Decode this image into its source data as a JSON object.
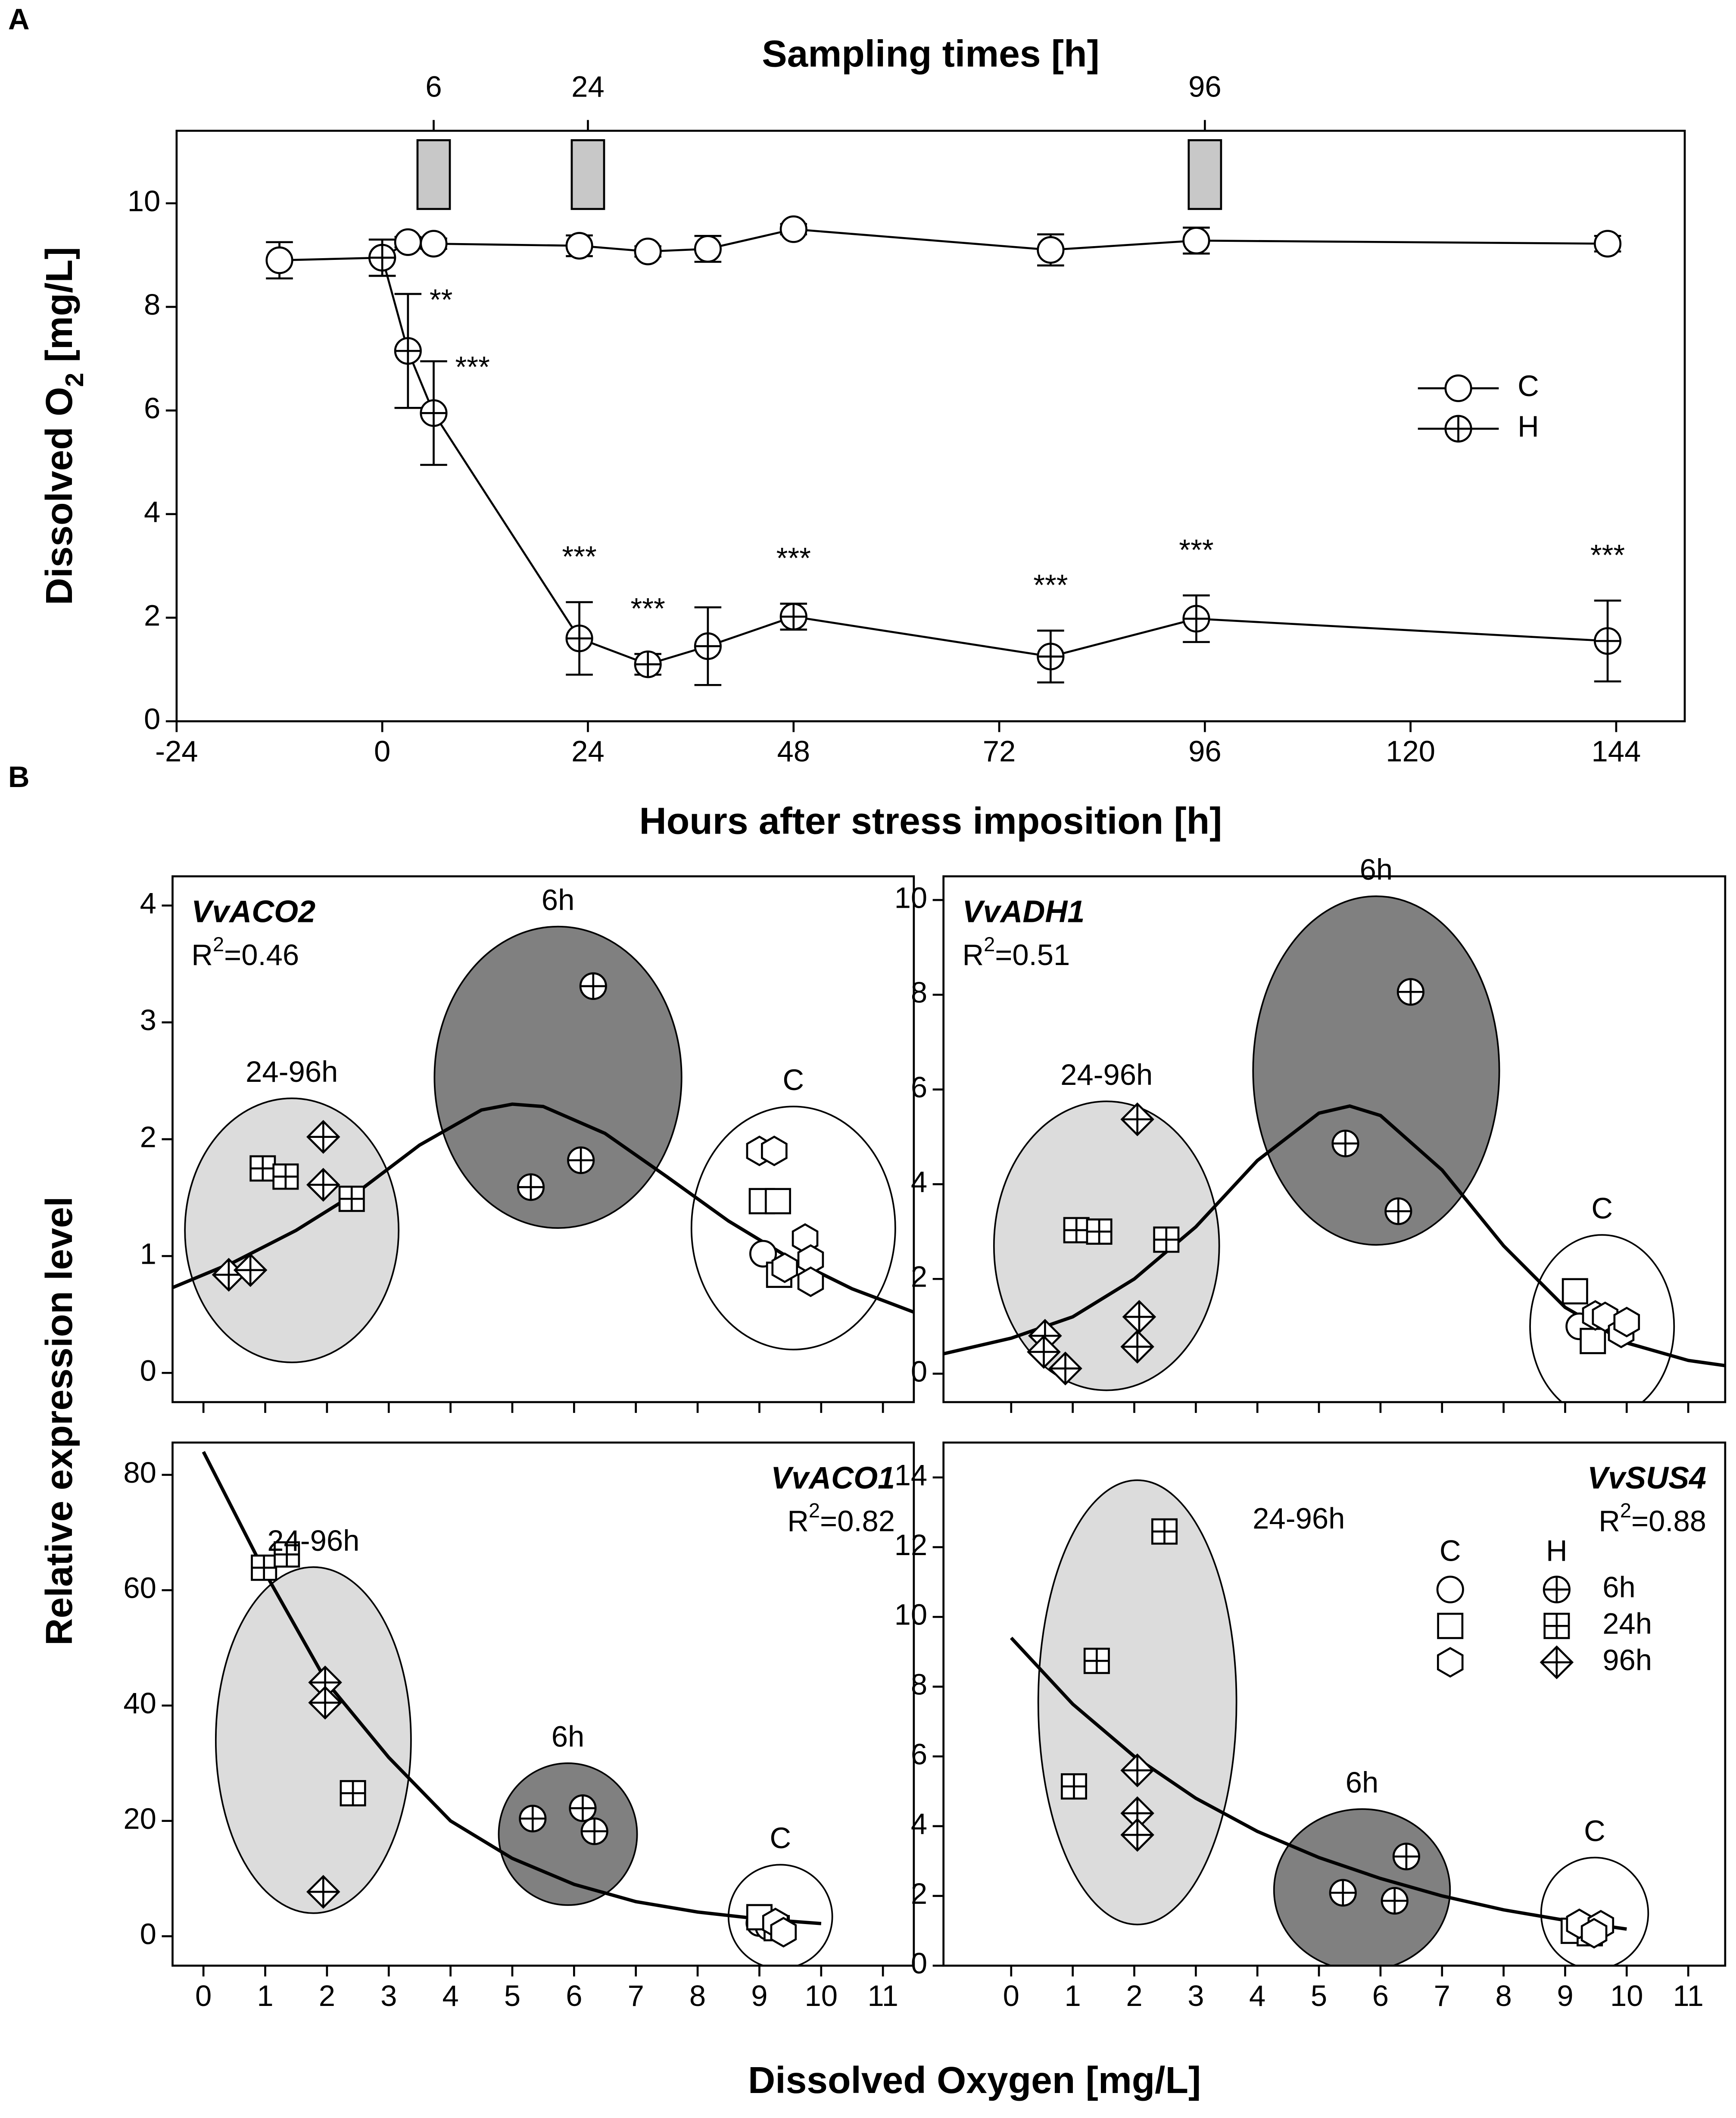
{
  "panel_labels": [
    "A",
    "B"
  ],
  "shared": {
    "ylabel": "Relative expression level",
    "xlabel": "Dissolved Oxygen [mg/L]"
  },
  "chart_data": [
    {
      "type": "line",
      "title": "Sampling times [h]",
      "sampling_times": [
        6,
        24,
        96
      ],
      "xlabel": "Hours after stress imposition [h]",
      "ylabel": [
        "Dissolved O",
        "2",
        " [mg/L]"
      ],
      "xlim": [
        -24,
        152
      ],
      "ylim": [
        0,
        11.4
      ],
      "xticks": [
        -24,
        0,
        24,
        48,
        72,
        96,
        120,
        144
      ],
      "yticks": [
        0,
        2,
        4,
        6,
        8,
        10
      ],
      "legend": "right",
      "series": [
        {
          "name": "C",
          "marker": "circle",
          "x": [
            -12,
            0,
            3,
            6,
            23,
            31,
            38,
            48,
            78,
            95,
            143
          ],
          "values": [
            8.9,
            8.95,
            9.25,
            9.22,
            9.18,
            9.07,
            9.12,
            9.5,
            9.1,
            9.28,
            9.22
          ],
          "errors": [
            0.35,
            0.35,
            0.1,
            0.1,
            0.2,
            0.1,
            0.25,
            0.1,
            0.3,
            0.25,
            0.15
          ]
        },
        {
          "name": "H",
          "marker": "circle-plus",
          "x": [
            0,
            3,
            6,
            23,
            31,
            38,
            48,
            78,
            95,
            143
          ],
          "values": [
            8.95,
            7.15,
            5.95,
            1.6,
            1.1,
            1.45,
            2.02,
            1.25,
            1.98,
            1.55
          ],
          "errors": [
            0.35,
            1.1,
            1.0,
            0.7,
            0.2,
            0.75,
            0.25,
            0.5,
            0.45,
            0.78
          ],
          "annotations": [
            null,
            "**",
            "***",
            "***",
            "***",
            null,
            "***",
            "***",
            "***",
            "***"
          ]
        }
      ]
    },
    {
      "type": "scatter",
      "gene": "VvACO2",
      "r2": [
        "R",
        "2",
        "=0.46"
      ],
      "label_corner": "upper left",
      "xlim": [
        -0.5,
        11.5
      ],
      "ylim": [
        -0.25,
        4.25
      ],
      "xticks": [
        0,
        1,
        2,
        3,
        4,
        5,
        6,
        7,
        8,
        9,
        10,
        11
      ],
      "yticks": [
        0,
        1,
        2,
        3,
        4
      ],
      "ellipses": [
        {
          "label": "24-96h",
          "cx": 1.43,
          "cy": 1.22,
          "rx": 1.73,
          "ry": 1.13,
          "color": "#dcdcdc"
        },
        {
          "label": "6h",
          "cx": 5.74,
          "cy": 2.53,
          "rx": 2.0,
          "ry": 1.29,
          "color": "#808080"
        },
        {
          "label": "C",
          "cx": 9.55,
          "cy": 1.24,
          "rx": 1.65,
          "ry": 1.04,
          "color": "#ffffff"
        }
      ],
      "fit": {
        "x": [
          -0.5,
          0.5,
          1.5,
          2.5,
          3.5,
          4.5,
          5.0,
          5.5,
          6.5,
          7.5,
          8.5,
          9.5,
          10.5,
          11.5
        ],
        "y": [
          0.73,
          0.95,
          1.22,
          1.55,
          1.95,
          2.25,
          2.3,
          2.28,
          2.05,
          1.68,
          1.3,
          0.98,
          0.72,
          0.52
        ]
      },
      "series": [
        {
          "marker": "circle",
          "x": [
            9.06
          ],
          "values": [
            1.02
          ]
        },
        {
          "marker": "square",
          "x": [
            9.04,
            9.3,
            9.32
          ],
          "values": [
            1.47,
            1.47,
            0.84
          ]
        },
        {
          "marker": "hexagon",
          "x": [
            9.0,
            9.24,
            9.41,
            9.74,
            9.83,
            9.83
          ],
          "values": [
            1.9,
            1.9,
            0.9,
            1.15,
            0.97,
            0.78
          ]
        },
        {
          "marker": "circle-plus",
          "x": [
            5.3,
            6.11,
            6.31
          ],
          "values": [
            1.59,
            1.82,
            3.31
          ]
        },
        {
          "marker": "square-plus",
          "x": [
            0.96,
            1.33,
            2.4
          ],
          "values": [
            1.75,
            1.68,
            1.49
          ]
        },
        {
          "marker": "diamond-plus",
          "x": [
            0.41,
            0.76,
            1.94,
            1.94
          ],
          "values": [
            0.84,
            0.88,
            2.02,
            1.61
          ]
        }
      ]
    },
    {
      "type": "scatter",
      "gene": "VvADH1",
      "r2": [
        "R",
        "2",
        "=0.51"
      ],
      "label_corner": "upper left",
      "xlim": [
        -1.1,
        11.6
      ],
      "ylim": [
        -0.6,
        10.5
      ],
      "xticks": [
        0,
        1,
        2,
        3,
        4,
        5,
        6,
        7,
        8,
        9,
        10,
        11
      ],
      "yticks": [
        0,
        2,
        4,
        6,
        8,
        10
      ],
      "ellipses": [
        {
          "label": "24-96h",
          "cx": 1.55,
          "cy": 2.7,
          "rx": 1.83,
          "ry": 3.05,
          "color": "#dcdcdc"
        },
        {
          "label": "6h",
          "cx": 5.93,
          "cy": 6.4,
          "rx": 2.0,
          "ry": 3.68,
          "color": "#808080"
        },
        {
          "label": "C",
          "cx": 9.6,
          "cy": 1.0,
          "rx": 1.17,
          "ry": 1.93,
          "color": "#ffffff"
        }
      ],
      "fit": {
        "x": [
          -1.1,
          0,
          1,
          2,
          3,
          4,
          5,
          5.5,
          6,
          7,
          8,
          9,
          10,
          11,
          11.6
        ],
        "y": [
          0.42,
          0.75,
          1.2,
          2.0,
          3.1,
          4.5,
          5.5,
          5.65,
          5.45,
          4.3,
          2.7,
          1.4,
          0.65,
          0.28,
          0.17
        ]
      },
      "series": [
        {
          "marker": "circle",
          "x": [
            9.23
          ],
          "values": [
            1.0
          ]
        },
        {
          "marker": "square",
          "x": [
            9.16,
            9.45
          ],
          "values": [
            1.74,
            0.69
          ]
        },
        {
          "marker": "hexagon",
          "x": [
            9.49,
            9.65,
            9.91,
            10.0
          ],
          "values": [
            1.23,
            1.2,
            0.86,
            1.09
          ]
        },
        {
          "marker": "circle-plus",
          "x": [
            5.43,
            6.29,
            6.49
          ],
          "values": [
            4.86,
            3.43,
            8.06
          ]
        },
        {
          "marker": "square-plus",
          "x": [
            1.06,
            1.43,
            2.52
          ],
          "values": [
            3.03,
            3.0,
            2.83
          ]
        },
        {
          "marker": "diamond-plus",
          "x": [
            0.55,
            0.53,
            0.88,
            2.05,
            2.08,
            2.05
          ],
          "values": [
            0.8,
            0.46,
            0.11,
            5.37,
            1.2,
            0.57
          ]
        }
      ]
    },
    {
      "type": "scatter",
      "gene": "VvACO1",
      "r2": [
        "R",
        "2",
        "=0.82"
      ],
      "label_corner": "upper right",
      "xlim": [
        -0.5,
        11.5
      ],
      "ylim": [
        -5.1,
        85.6
      ],
      "xticks": [
        0,
        1,
        2,
        3,
        4,
        5,
        6,
        7,
        8,
        9,
        10,
        11
      ],
      "yticks": [
        0,
        20,
        40,
        60,
        80
      ],
      "ellipses": [
        {
          "label": "24-96h",
          "cx": 1.78,
          "cy": 34,
          "rx": 1.58,
          "ry": 30,
          "color": "#dcdcdc"
        },
        {
          "label": "6h",
          "cx": 5.9,
          "cy": 17.7,
          "rx": 1.12,
          "ry": 12.3,
          "color": "#808080"
        },
        {
          "label": "C",
          "cx": 9.34,
          "cy": 3.4,
          "rx": 0.84,
          "ry": 9,
          "color": "#ffffff"
        }
      ],
      "fit": {
        "x": [
          0,
          1,
          2,
          3,
          4,
          5,
          6,
          7,
          8,
          9,
          10
        ],
        "y": [
          84,
          63,
          44,
          31,
          20,
          13.5,
          9,
          6,
          4.2,
          3,
          2.2
        ]
      },
      "series": [
        {
          "marker": "circle",
          "x": [
            9.0,
            9.15
          ],
          "values": [
            2.3,
            1.6
          ]
        },
        {
          "marker": "square",
          "x": [
            9.0,
            9.28
          ],
          "values": [
            3.3,
            1.4
          ]
        },
        {
          "marker": "hexagon",
          "x": [
            9.26,
            9.39
          ],
          "values": [
            2.3,
            0.7
          ]
        },
        {
          "marker": "circle-plus",
          "x": [
            5.33,
            6.14,
            6.33
          ],
          "values": [
            20.4,
            22.2,
            18.2
          ]
        },
        {
          "marker": "square-plus",
          "x": [
            0.98,
            1.35,
            2.42
          ],
          "values": [
            63.9,
            66.2,
            24.8
          ]
        },
        {
          "marker": "diamond-plus",
          "x": [
            1.97,
            1.97,
            1.94
          ],
          "values": [
            44,
            40.5,
            7.7
          ]
        }
      ]
    },
    {
      "type": "scatter",
      "gene": "VvSUS4",
      "r2": [
        "R",
        "2",
        "=0.88"
      ],
      "label_corner": "upper right",
      "xlim": [
        -1.1,
        11.6
      ],
      "ylim": [
        0,
        15
      ],
      "xticks": [
        0,
        1,
        2,
        3,
        4,
        5,
        6,
        7,
        8,
        9,
        10,
        11
      ],
      "yticks": [
        0,
        2,
        4,
        6,
        8,
        10,
        12,
        14
      ],
      "ellipses": [
        {
          "label": "24-96h",
          "cx": 2.05,
          "cy": 7.55,
          "rx": 1.61,
          "ry": 6.37,
          "color": "#dcdcdc",
          "label_side": "right"
        },
        {
          "label": "6h",
          "cx": 5.7,
          "cy": 2.17,
          "rx": 1.43,
          "ry": 2.32,
          "color": "#808080"
        },
        {
          "label": "C",
          "cx": 9.48,
          "cy": 1.5,
          "rx": 0.87,
          "ry": 1.6,
          "color": "#ffffff"
        }
      ],
      "fit": {
        "x": [
          0,
          1,
          2,
          3,
          4,
          5,
          6,
          7,
          8,
          9,
          10
        ],
        "y": [
          9.4,
          7.5,
          6.0,
          4.8,
          3.85,
          3.1,
          2.5,
          2.0,
          1.6,
          1.3,
          1.05
        ]
      },
      "legend": {
        "columns": [
          "C",
          "H"
        ],
        "rows": [
          "6h",
          "24h",
          "96h"
        ]
      },
      "series": [
        {
          "marker": "circle",
          "x": [
            9.36
          ],
          "values": [
            1.0
          ]
        },
        {
          "marker": "square",
          "x": [
            9.14,
            9.4
          ],
          "values": [
            1.0,
            0.93
          ]
        },
        {
          "marker": "hexagon",
          "x": [
            9.23,
            9.58,
            9.47
          ],
          "values": [
            1.2,
            1.16,
            0.93
          ]
        },
        {
          "marker": "circle-plus",
          "x": [
            5.39,
            6.23,
            6.42
          ],
          "values": [
            2.09,
            1.86,
            3.13
          ]
        },
        {
          "marker": "square-plus",
          "x": [
            1.02,
            1.39,
            2.49
          ],
          "values": [
            5.14,
            8.74,
            12.45
          ]
        },
        {
          "marker": "diamond-plus",
          "x": [
            2.05,
            2.05,
            2.05
          ],
          "values": [
            5.6,
            4.37,
            3.75
          ]
        }
      ]
    }
  ]
}
